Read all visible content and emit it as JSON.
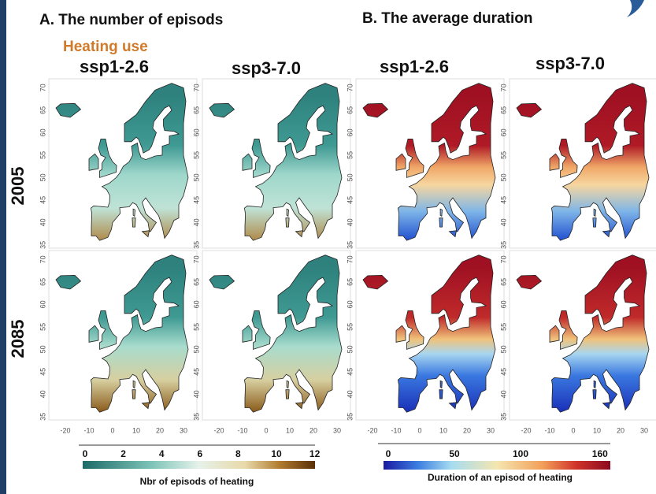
{
  "header": {
    "panel_a": "A. The number of episods",
    "panel_b": "B. The average duration",
    "subtitle": "Heating use"
  },
  "columns": [
    "ssp1-2.6",
    "ssp3-7.0",
    "ssp1-2.6",
    "ssp3-7.0"
  ],
  "rows": [
    "2005",
    "2085"
  ],
  "lat_ticks": [
    70,
    65,
    60,
    55,
    50,
    45,
    40,
    35
  ],
  "lon_ticks": [
    -20,
    -10,
    0,
    10,
    20,
    30
  ],
  "legend_a": {
    "ticks": [
      0,
      2,
      4,
      6,
      8,
      10,
      12
    ],
    "title": "Nbr of episods of heating"
  },
  "legend_b": {
    "ticks": [
      0,
      50,
      100,
      160
    ],
    "title": "Duration of an episod of heating"
  }
}
